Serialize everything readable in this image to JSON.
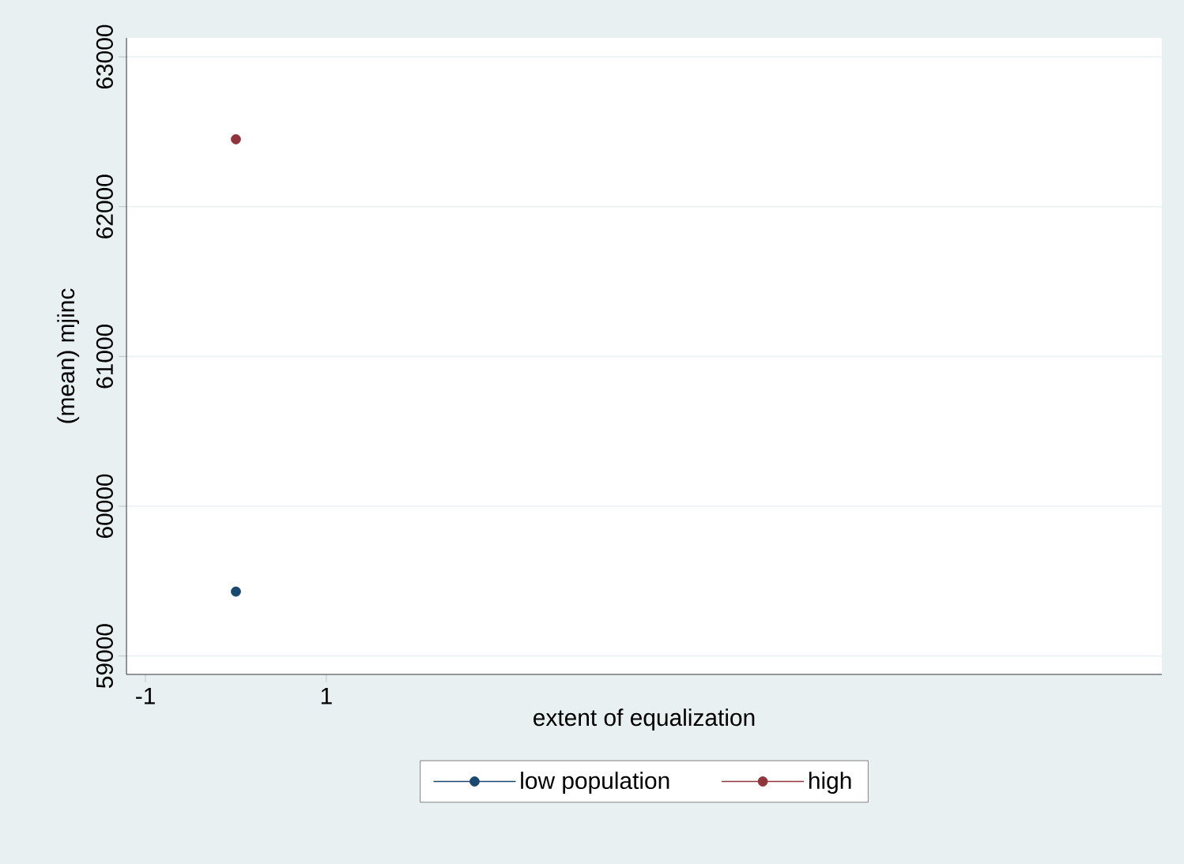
{
  "chart_data": {
    "type": "scatter",
    "xlabel": "extent of equalization",
    "ylabel": "(mean) mjinc",
    "x": [
      0
    ],
    "series": [
      {
        "name": "low population",
        "color": "#1a476f",
        "values": [
          59430
        ]
      },
      {
        "name": "high",
        "color": "#90353b",
        "values": [
          62450
        ]
      }
    ],
    "xlim": [
      -1.21,
      10.24
    ],
    "ylim": [
      58877,
      63127
    ],
    "xticks": [
      -1,
      1
    ],
    "yticks": [
      59000,
      60000,
      61000,
      62000,
      63000
    ],
    "grid": "y",
    "legend": "bottom",
    "marker": "circle"
  }
}
